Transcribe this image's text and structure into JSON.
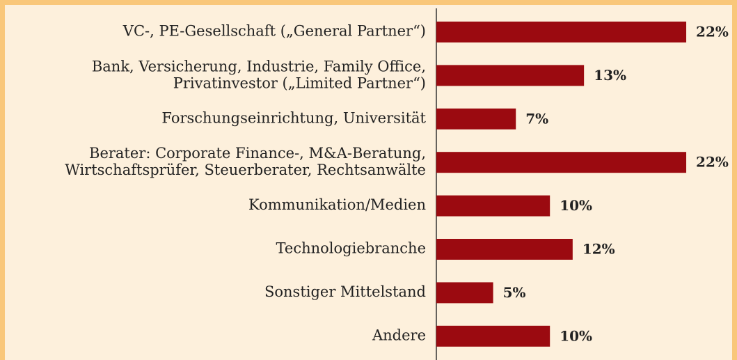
{
  "chart_data": {
    "type": "bar",
    "orientation": "horizontal",
    "categories": [
      "VC-, PE-Gesellschaft („General Partner“)",
      "Bank, Versicherung, Industrie, Family Office,\nPrivatinvestor („Limited Partner“)",
      "Forschungseinrichtung, Universität",
      "Berater: Corporate Finance-, M&A-Beratung,\nWirtschaftsprüfer, Steuerberater, Rechtsanwälte",
      "Kommunikation/Medien",
      "Technologiebranche",
      "Sonstiger Mittelstand",
      "Andere"
    ],
    "values": [
      22,
      13,
      7,
      22,
      10,
      12,
      5,
      10
    ],
    "value_labels": [
      "22%",
      "13%",
      "7%",
      "22%",
      "10%",
      "12%",
      "5%",
      "10%"
    ],
    "color": "#9b0a10"
  }
}
